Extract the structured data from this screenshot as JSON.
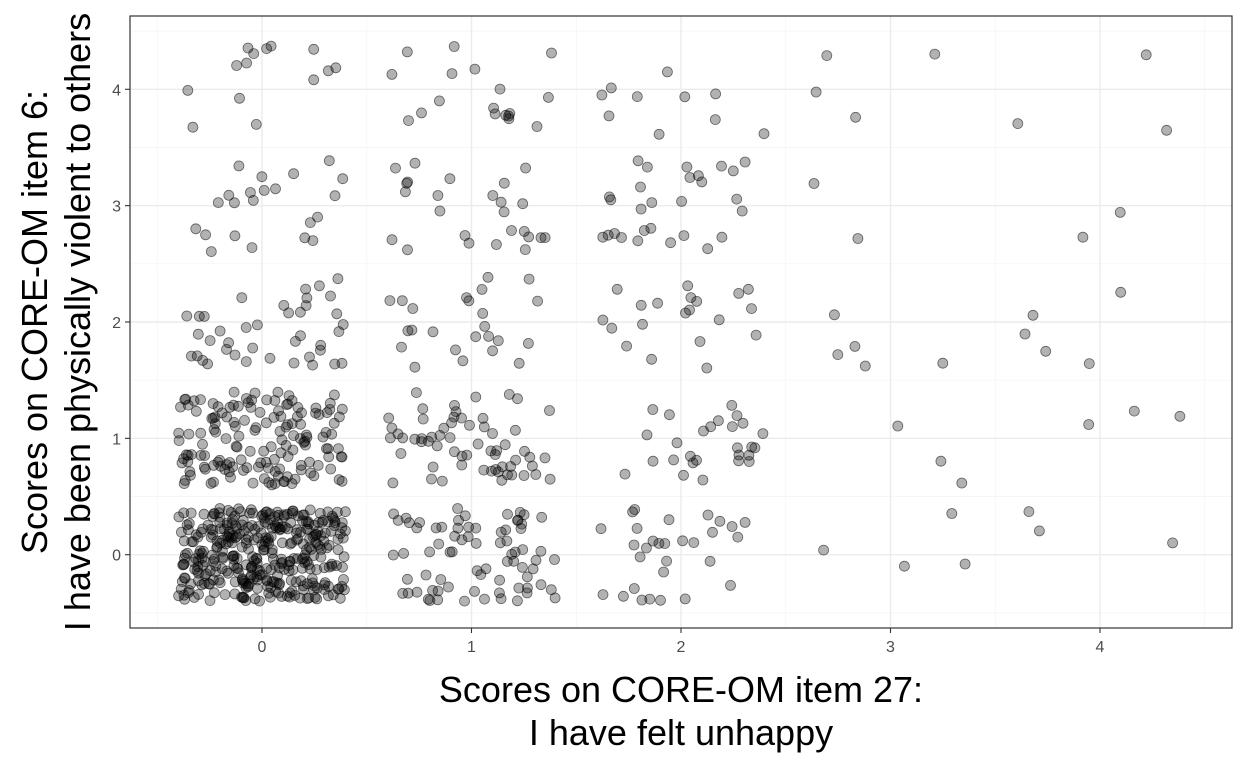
{
  "chart_data": {
    "type": "scatter",
    "xlabel": [
      "Scores on CORE-OM item 27:",
      "I have felt unhappy"
    ],
    "ylabel": [
      "Scores on CORE-OM item 6:",
      "I have been physically violent to others"
    ],
    "xlim": [
      -0.63,
      4.63
    ],
    "ylim": [
      -0.63,
      4.63
    ],
    "x_ticks": [
      0,
      1,
      2,
      3,
      4
    ],
    "y_ticks": [
      0,
      1,
      2,
      3,
      4
    ],
    "grid": true,
    "jitter": {
      "x": 0.4,
      "y": 0.4
    },
    "point_color": "#000000",
    "point_alpha": 0.3,
    "counts": [
      [
        360,
        75,
        30,
        4,
        3
      ],
      [
        150,
        62,
        27,
        3,
        3
      ],
      [
        40,
        24,
        20,
        5,
        5
      ],
      [
        22,
        25,
        28,
        2,
        2
      ],
      [
        14,
        18,
        10,
        4,
        3
      ]
    ]
  }
}
